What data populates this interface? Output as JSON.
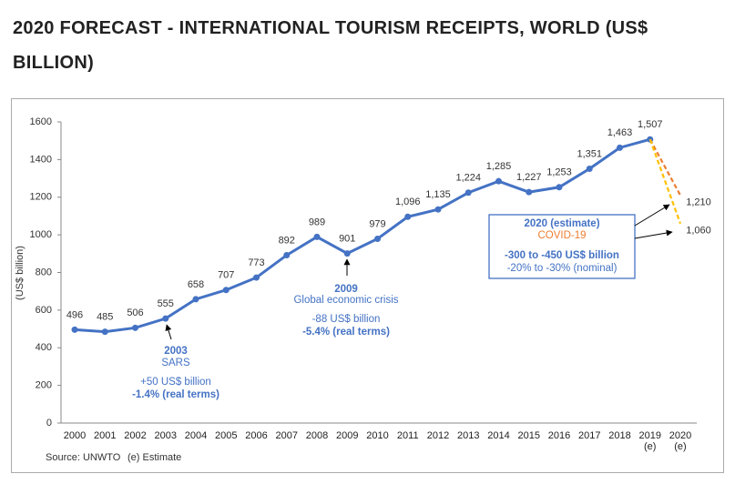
{
  "chart_data": {
    "type": "line",
    "title": "2020 FORECAST - INTERNATIONAL TOURISM RECEIPTS, WORLD (US$ BILLION)",
    "y_label": "(US$ billion)",
    "categories": [
      "2000",
      "2001",
      "2002",
      "2003",
      "2004",
      "2005",
      "2006",
      "2007",
      "2008",
      "2009",
      "2010",
      "2011",
      "2012",
      "2013",
      "2014",
      "2015",
      "2016",
      "2017",
      "2018",
      "2019 (e)",
      "2020 (e)"
    ],
    "series": [
      {
        "color": "#4472c4",
        "style": "solid",
        "values": [
          496,
          485,
          506,
          555,
          658,
          707,
          773,
          892,
          989,
          901,
          979,
          1096,
          1135,
          1224,
          1285,
          1227,
          1253,
          1351,
          1463,
          1507,
          null
        ],
        "value_labels": [
          "496",
          "485",
          "506",
          "555",
          "658",
          "707",
          "773",
          "892",
          "989",
          "901",
          "979",
          "1,096",
          "1,135",
          "1,224",
          "1,285",
          "1,227",
          "1,253",
          "1,351",
          "1,463",
          "1,507",
          null
        ]
      },
      {
        "color": "#ed7d31",
        "style": "dashed",
        "values": [
          null,
          null,
          null,
          null,
          null,
          null,
          null,
          null,
          null,
          null,
          null,
          null,
          null,
          null,
          null,
          null,
          null,
          null,
          null,
          1507,
          1210
        ],
        "value_labels": [
          null,
          null,
          null,
          null,
          null,
          null,
          null,
          null,
          null,
          null,
          null,
          null,
          null,
          null,
          null,
          null,
          null,
          null,
          null,
          null,
          "1,210"
        ]
      },
      {
        "color": "#ffc000",
        "style": "dashed",
        "values": [
          null,
          null,
          null,
          null,
          null,
          null,
          null,
          null,
          null,
          null,
          null,
          null,
          null,
          null,
          null,
          null,
          null,
          null,
          null,
          1507,
          1060
        ],
        "value_labels": [
          null,
          null,
          null,
          null,
          null,
          null,
          null,
          null,
          null,
          null,
          null,
          null,
          null,
          null,
          null,
          null,
          null,
          null,
          null,
          null,
          "1,060"
        ]
      }
    ],
    "ylim": [
      0,
      1600
    ],
    "yticks": [
      0,
      200,
      400,
      600,
      800,
      1000,
      1200,
      1400,
      1600
    ],
    "annotations": [
      {
        "lines": [
          "2003",
          "SARS",
          "+50 US$ billion",
          "-1.4% (real terms)"
        ]
      },
      {
        "lines": [
          "2009",
          "Global economic crisis",
          "-88 US$ billion",
          "-5.4% (real terms)"
        ]
      },
      {
        "lines": [
          "2020 (estimate)",
          "COVID-19",
          "-300 to -450 US$ billion",
          "-20% to -30% (nominal)"
        ]
      }
    ],
    "source": "Source: UNWTO",
    "note": "(e) Estimate"
  }
}
